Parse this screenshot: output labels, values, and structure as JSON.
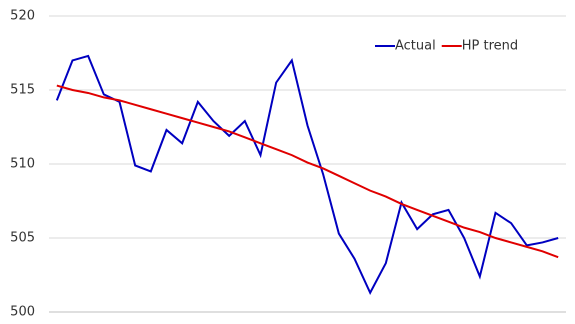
{
  "chart_data": {
    "type": "line",
    "categories": [
      null,
      null,
      null,
      null,
      null,
      null,
      null,
      null,
      null,
      null,
      null,
      null,
      null,
      null,
      null,
      null,
      null,
      null,
      null,
      null,
      null,
      null,
      null,
      null,
      null,
      null,
      null,
      null,
      null,
      null,
      null,
      null,
      null
    ],
    "series": [
      {
        "name": "Actual",
        "color": "#0000c0",
        "values": [
          514.3,
          517,
          517.3,
          514.7,
          514.2,
          509.9,
          509.5,
          512.3,
          511.4,
          514.2,
          512.9,
          511.9,
          512.9,
          510.6,
          515.5,
          517,
          512.6,
          509.3,
          505.3,
          503.6,
          501.3,
          503.3,
          507.4,
          505.6,
          506.6,
          506.9,
          505,
          502.4,
          506.7,
          506,
          504.5,
          504.7,
          505
        ]
      },
      {
        "name": "HP trend",
        "color": "#e00000",
        "values": [
          515.3,
          515.0,
          514.8,
          514.5,
          514.3,
          514.0,
          513.7,
          513.4,
          513.1,
          512.8,
          512.5,
          512.2,
          511.8,
          511.4,
          511.0,
          510.6,
          510.1,
          509.7,
          509.2,
          508.7,
          508.2,
          507.8,
          507.3,
          506.9,
          506.5,
          506.1,
          505.7,
          505.4,
          505.0,
          504.7,
          504.4,
          504.1,
          503.7
        ]
      }
    ],
    "ylim": [
      500,
      520
    ],
    "yticks": [
      500,
      505,
      510,
      515,
      520
    ],
    "grid": true,
    "legend": "top-right"
  }
}
